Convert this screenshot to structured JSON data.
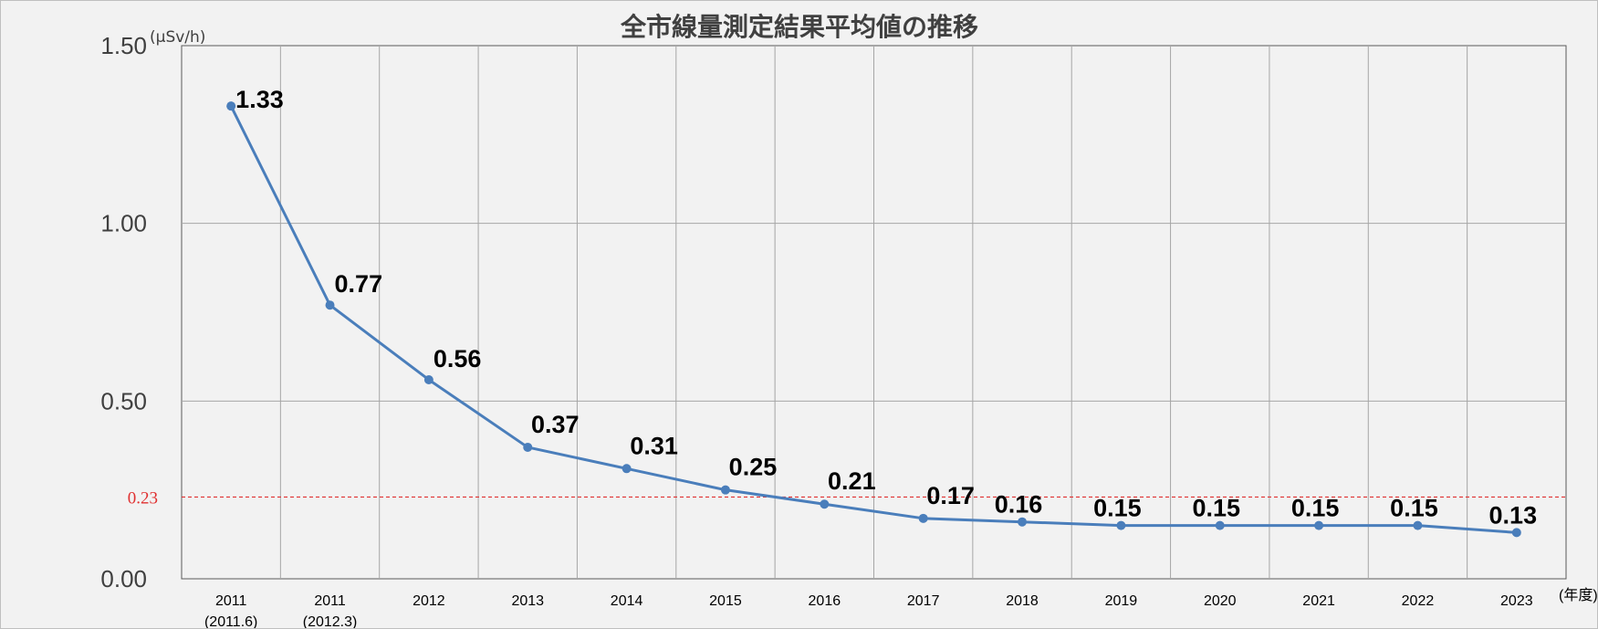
{
  "chart_data": {
    "type": "line",
    "title": "全市線量測定結果平均値の推移",
    "ylabel": "(μSv/h)",
    "xlabel": "(年度)",
    "ylim": [
      0,
      1.5
    ],
    "yticks": [
      "0.00",
      "0.50",
      "1.00",
      "1.50"
    ],
    "grid": true,
    "categories": [
      {
        "line1": "2011",
        "line2": "(2011.6)"
      },
      {
        "line1": "2011",
        "line2": "(2012.3)"
      },
      {
        "line1": "2012",
        "line2": ""
      },
      {
        "line1": "2013",
        "line2": ""
      },
      {
        "line1": "2014",
        "line2": ""
      },
      {
        "line1": "2015",
        "line2": ""
      },
      {
        "line1": "2016",
        "line2": ""
      },
      {
        "line1": "2017",
        "line2": ""
      },
      {
        "line1": "2018",
        "line2": ""
      },
      {
        "line1": "2019",
        "line2": ""
      },
      {
        "line1": "2020",
        "line2": ""
      },
      {
        "line1": "2021",
        "line2": ""
      },
      {
        "line1": "2022",
        "line2": ""
      },
      {
        "line1": "2023",
        "line2": ""
      }
    ],
    "series": [
      {
        "values": [
          1.33,
          0.77,
          0.56,
          0.37,
          0.31,
          0.25,
          0.21,
          0.17,
          0.16,
          0.15,
          0.15,
          0.15,
          0.15,
          0.13
        ],
        "labels": [
          "1.33",
          "0.77",
          "0.56",
          "0.37",
          "0.31",
          "0.25",
          "0.21",
          "0.17",
          "0.16",
          "0.15",
          "0.15",
          "0.15",
          "0.15",
          "0.13"
        ],
        "color": "#4a7ebb"
      }
    ],
    "reference_line": {
      "value": 0.23,
      "label": "0.23",
      "color": "#e03030",
      "style": "dashed"
    }
  }
}
